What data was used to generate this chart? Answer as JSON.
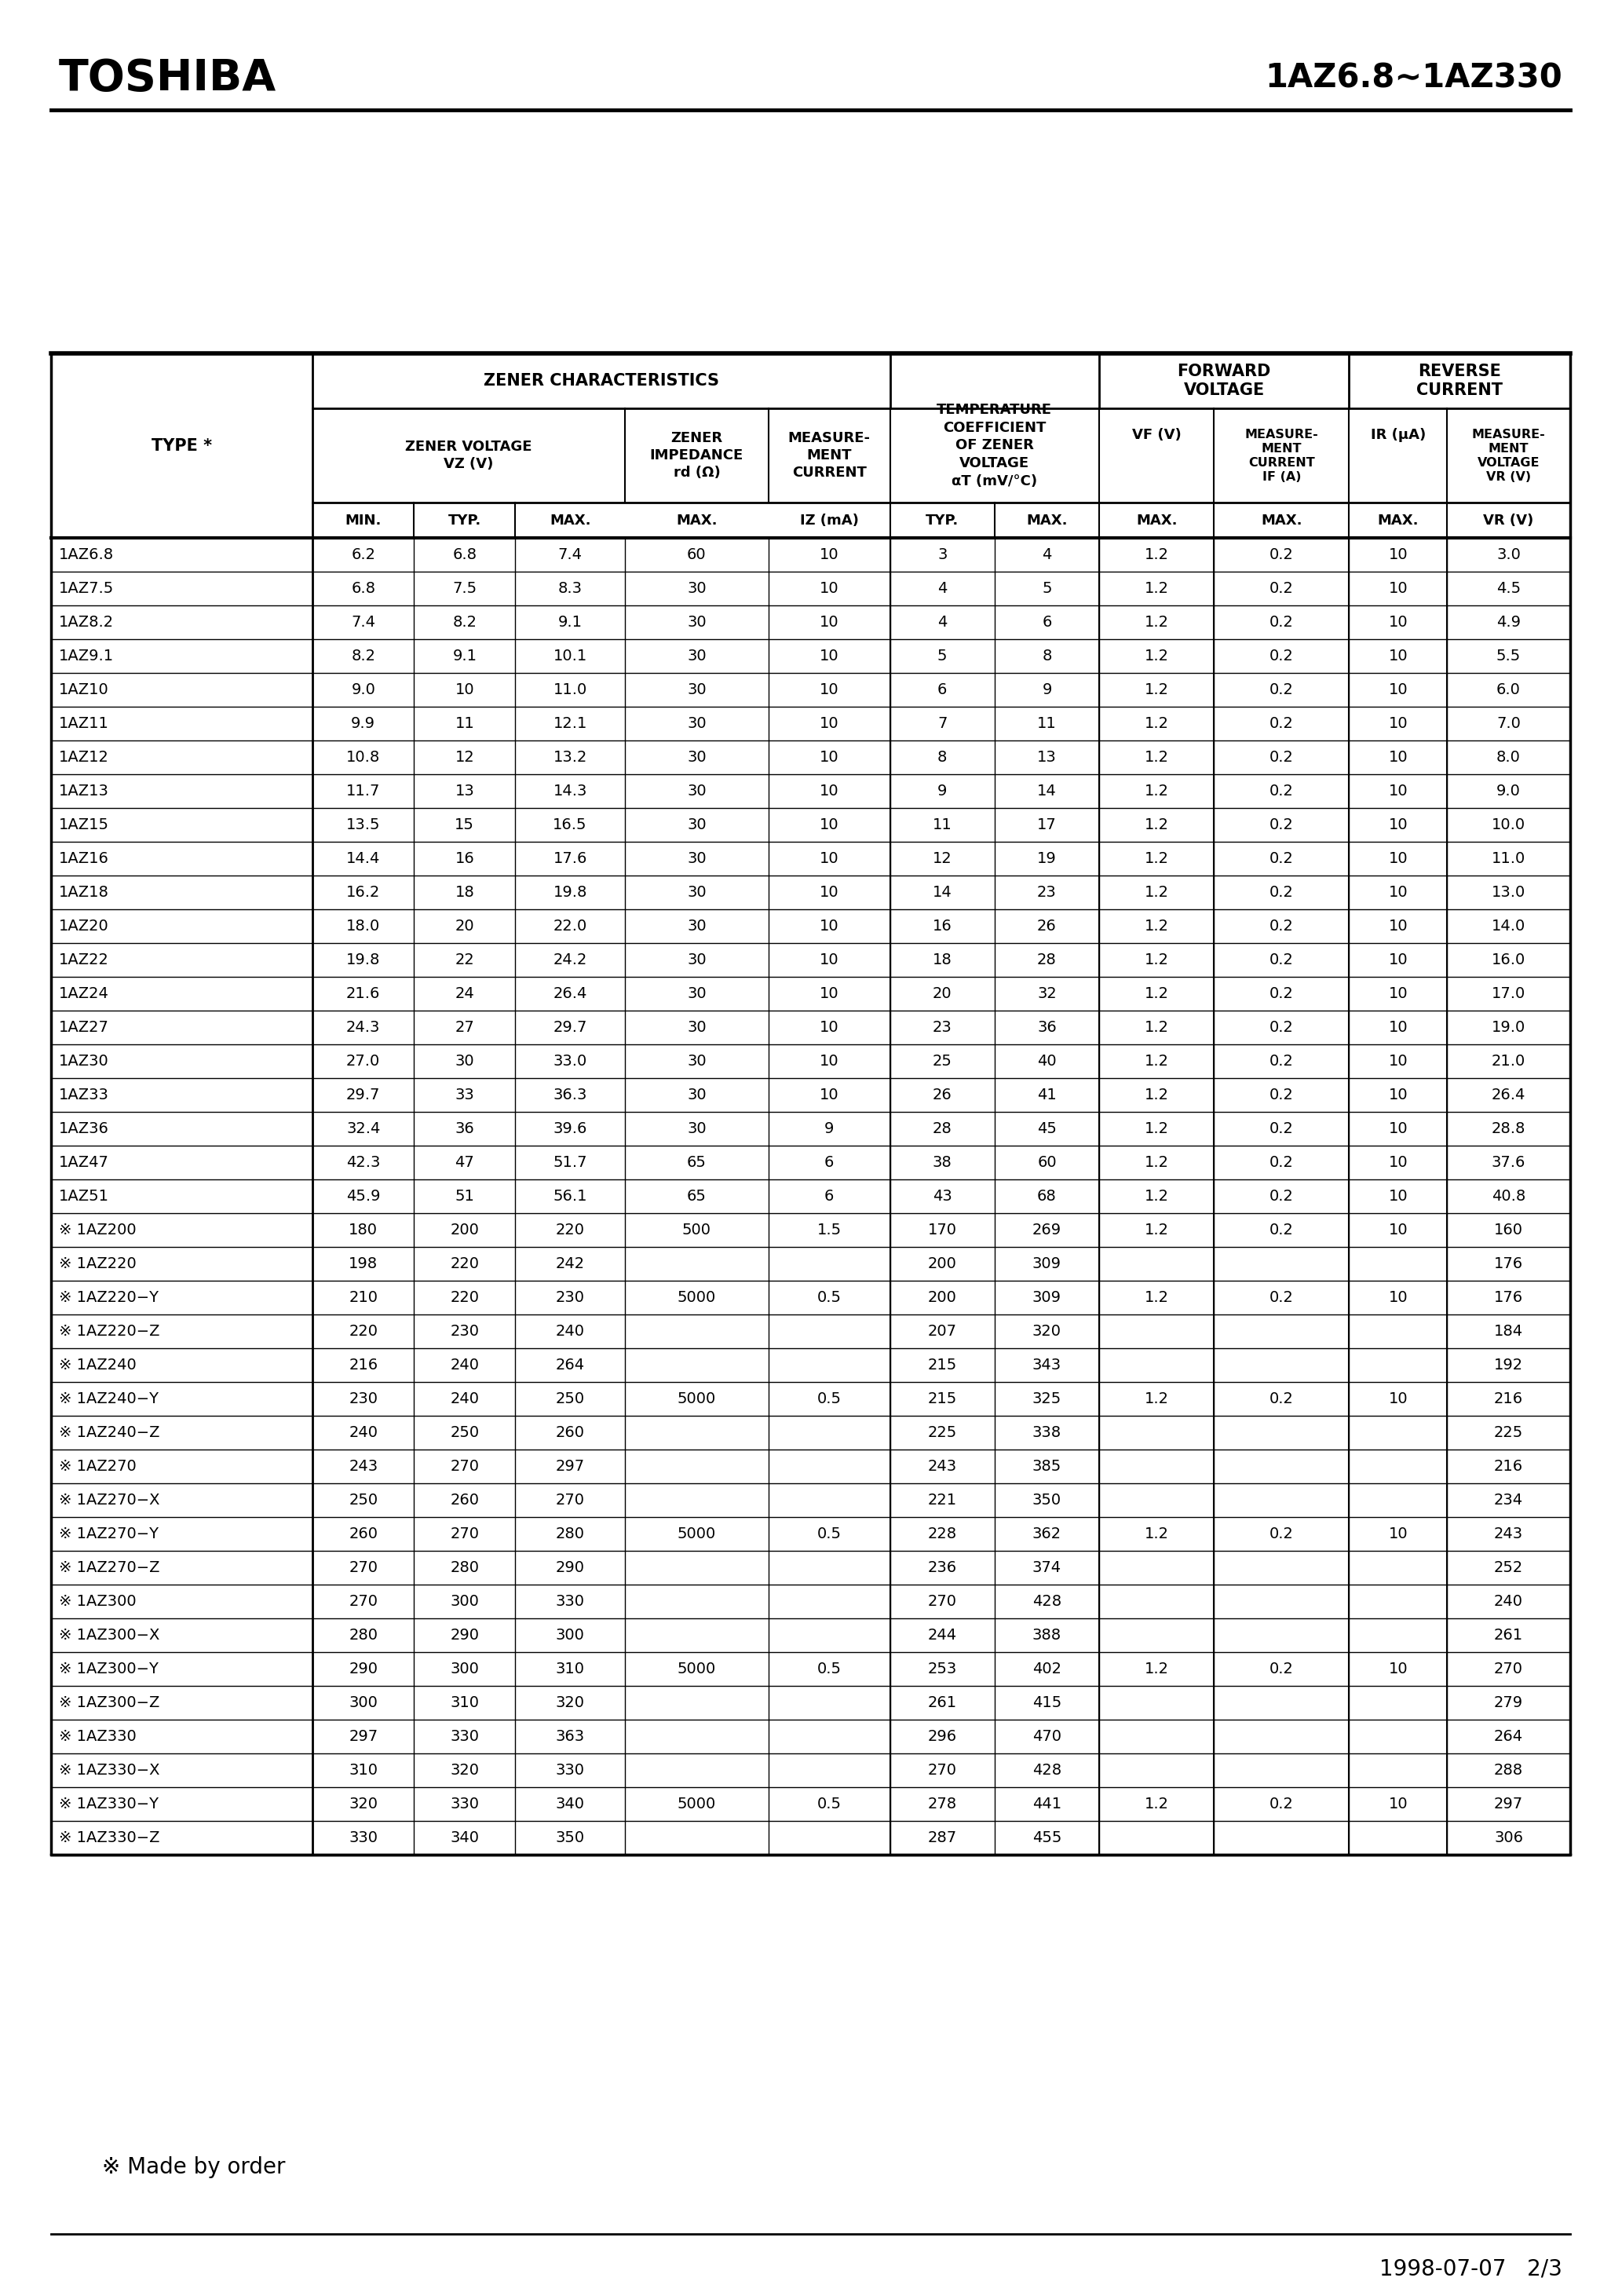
{
  "title_left": "TOSHIBA",
  "title_right": "1AZ6.8∼1AZ330",
  "footer_note": "※ Made by order",
  "footer_right": "1998-07-07   2/3",
  "rows": [
    [
      "1AZ6.8",
      "6.2",
      "6.8",
      "7.4",
      "60",
      "10",
      "3",
      "4",
      "1.2",
      "0.2",
      "10",
      "3.0"
    ],
    [
      "1AZ7.5",
      "6.8",
      "7.5",
      "8.3",
      "30",
      "10",
      "4",
      "5",
      "1.2",
      "0.2",
      "10",
      "4.5"
    ],
    [
      "1AZ8.2",
      "7.4",
      "8.2",
      "9.1",
      "30",
      "10",
      "4",
      "6",
      "1.2",
      "0.2",
      "10",
      "4.9"
    ],
    [
      "1AZ9.1",
      "8.2",
      "9.1",
      "10.1",
      "30",
      "10",
      "5",
      "8",
      "1.2",
      "0.2",
      "10",
      "5.5"
    ],
    [
      "1AZ10",
      "9.0",
      "10",
      "11.0",
      "30",
      "10",
      "6",
      "9",
      "1.2",
      "0.2",
      "10",
      "6.0"
    ],
    [
      "1AZ11",
      "9.9",
      "11",
      "12.1",
      "30",
      "10",
      "7",
      "11",
      "1.2",
      "0.2",
      "10",
      "7.0"
    ],
    [
      "1AZ12",
      "10.8",
      "12",
      "13.2",
      "30",
      "10",
      "8",
      "13",
      "1.2",
      "0.2",
      "10",
      "8.0"
    ],
    [
      "1AZ13",
      "11.7",
      "13",
      "14.3",
      "30",
      "10",
      "9",
      "14",
      "1.2",
      "0.2",
      "10",
      "9.0"
    ],
    [
      "1AZ15",
      "13.5",
      "15",
      "16.5",
      "30",
      "10",
      "11",
      "17",
      "1.2",
      "0.2",
      "10",
      "10.0"
    ],
    [
      "1AZ16",
      "14.4",
      "16",
      "17.6",
      "30",
      "10",
      "12",
      "19",
      "1.2",
      "0.2",
      "10",
      "11.0"
    ],
    [
      "1AZ18",
      "16.2",
      "18",
      "19.8",
      "30",
      "10",
      "14",
      "23",
      "1.2",
      "0.2",
      "10",
      "13.0"
    ],
    [
      "1AZ20",
      "18.0",
      "20",
      "22.0",
      "30",
      "10",
      "16",
      "26",
      "1.2",
      "0.2",
      "10",
      "14.0"
    ],
    [
      "1AZ22",
      "19.8",
      "22",
      "24.2",
      "30",
      "10",
      "18",
      "28",
      "1.2",
      "0.2",
      "10",
      "16.0"
    ],
    [
      "1AZ24",
      "21.6",
      "24",
      "26.4",
      "30",
      "10",
      "20",
      "32",
      "1.2",
      "0.2",
      "10",
      "17.0"
    ],
    [
      "1AZ27",
      "24.3",
      "27",
      "29.7",
      "30",
      "10",
      "23",
      "36",
      "1.2",
      "0.2",
      "10",
      "19.0"
    ],
    [
      "1AZ30",
      "27.0",
      "30",
      "33.0",
      "30",
      "10",
      "25",
      "40",
      "1.2",
      "0.2",
      "10",
      "21.0"
    ],
    [
      "1AZ33",
      "29.7",
      "33",
      "36.3",
      "30",
      "10",
      "26",
      "41",
      "1.2",
      "0.2",
      "10",
      "26.4"
    ],
    [
      "1AZ36",
      "32.4",
      "36",
      "39.6",
      "30",
      "9",
      "28",
      "45",
      "1.2",
      "0.2",
      "10",
      "28.8"
    ],
    [
      "1AZ47",
      "42.3",
      "47",
      "51.7",
      "65",
      "6",
      "38",
      "60",
      "1.2",
      "0.2",
      "10",
      "37.6"
    ],
    [
      "1AZ51",
      "45.9",
      "51",
      "56.1",
      "65",
      "6",
      "43",
      "68",
      "1.2",
      "0.2",
      "10",
      "40.8"
    ],
    [
      "※ 1AZ200",
      "180",
      "200",
      "220",
      "500",
      "1.5",
      "170",
      "269",
      "1.2",
      "0.2",
      "10",
      "160"
    ],
    [
      "※ 1AZ220",
      "198",
      "220",
      "242",
      "",
      "",
      "200",
      "309",
      "",
      "",
      "",
      "176"
    ],
    [
      "※ 1AZ220−Y",
      "210",
      "220",
      "230",
      "5000",
      "0.5",
      "200",
      "309",
      "1.2",
      "0.2",
      "10",
      "176"
    ],
    [
      "※ 1AZ220−Z",
      "220",
      "230",
      "240",
      "",
      "",
      "207",
      "320",
      "",
      "",
      "",
      "184"
    ],
    [
      "※ 1AZ240",
      "216",
      "240",
      "264",
      "",
      "",
      "215",
      "343",
      "",
      "",
      "",
      "192"
    ],
    [
      "※ 1AZ240−Y",
      "230",
      "240",
      "250",
      "5000",
      "0.5",
      "215",
      "325",
      "1.2",
      "0.2",
      "10",
      "216"
    ],
    [
      "※ 1AZ240−Z",
      "240",
      "250",
      "260",
      "",
      "",
      "225",
      "338",
      "",
      "",
      "",
      "225"
    ],
    [
      "※ 1AZ270",
      "243",
      "270",
      "297",
      "",
      "",
      "243",
      "385",
      "",
      "",
      "",
      "216"
    ],
    [
      "※ 1AZ270−X",
      "250",
      "260",
      "270",
      "",
      "",
      "221",
      "350",
      "",
      "",
      "",
      "234"
    ],
    [
      "※ 1AZ270−Y",
      "260",
      "270",
      "280",
      "5000",
      "0.5",
      "228",
      "362",
      "1.2",
      "0.2",
      "10",
      "243"
    ],
    [
      "※ 1AZ270−Z",
      "270",
      "280",
      "290",
      "",
      "",
      "236",
      "374",
      "",
      "",
      "",
      "252"
    ],
    [
      "※ 1AZ300",
      "270",
      "300",
      "330",
      "",
      "",
      "270",
      "428",
      "",
      "",
      "",
      "240"
    ],
    [
      "※ 1AZ300−X",
      "280",
      "290",
      "300",
      "",
      "",
      "244",
      "388",
      "",
      "",
      "",
      "261"
    ],
    [
      "※ 1AZ300−Y",
      "290",
      "300",
      "310",
      "5000",
      "0.5",
      "253",
      "402",
      "1.2",
      "0.2",
      "10",
      "270"
    ],
    [
      "※ 1AZ300−Z",
      "300",
      "310",
      "320",
      "",
      "",
      "261",
      "415",
      "",
      "",
      "",
      "279"
    ],
    [
      "※ 1AZ330",
      "297",
      "330",
      "363",
      "",
      "",
      "296",
      "470",
      "",
      "",
      "",
      "264"
    ],
    [
      "※ 1AZ330−X",
      "310",
      "320",
      "330",
      "",
      "",
      "270",
      "428",
      "",
      "",
      "",
      "288"
    ],
    [
      "※ 1AZ330−Y",
      "320",
      "330",
      "340",
      "5000",
      "0.5",
      "278",
      "441",
      "1.2",
      "0.2",
      "10",
      "297"
    ],
    [
      "※ 1AZ330−Z",
      "330",
      "340",
      "350",
      "",
      "",
      "287",
      "455",
      "",
      "",
      "",
      "306"
    ]
  ]
}
